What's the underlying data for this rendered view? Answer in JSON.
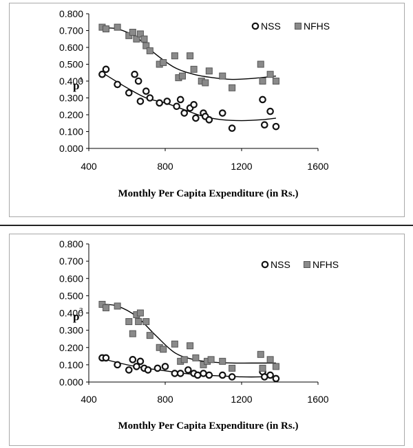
{
  "chart_data": [
    {
      "type": "scatter",
      "ylabel": "p",
      "ylabel_superscript": "1",
      "xlabel": "Monthly Per Capita Expenditure (in Rs.)",
      "xticks": [
        400,
        800,
        1200,
        1600
      ],
      "yticks": [
        "0.000",
        "0.100",
        "0.200",
        "0.300",
        "0.400",
        "0.500",
        "0.600",
        "0.700",
        "0.800"
      ],
      "xlim": [
        400,
        1600
      ],
      "ylim": [
        0,
        0.8
      ],
      "legend_position": "top-right",
      "series": [
        {
          "name": "NSS",
          "marker": "circle",
          "points": [
            [
              470,
              0.44
            ],
            [
              490,
              0.47
            ],
            [
              550,
              0.38
            ],
            [
              610,
              0.33
            ],
            [
              640,
              0.44
            ],
            [
              660,
              0.4
            ],
            [
              670,
              0.28
            ],
            [
              700,
              0.34
            ],
            [
              720,
              0.3
            ],
            [
              770,
              0.27
            ],
            [
              810,
              0.28
            ],
            [
              860,
              0.25
            ],
            [
              880,
              0.29
            ],
            [
              900,
              0.21
            ],
            [
              930,
              0.24
            ],
            [
              950,
              0.26
            ],
            [
              960,
              0.18
            ],
            [
              1000,
              0.21
            ],
            [
              1010,
              0.19
            ],
            [
              1030,
              0.17
            ],
            [
              1100,
              0.21
            ],
            [
              1150,
              0.12
            ],
            [
              1310,
              0.29
            ],
            [
              1320,
              0.14
            ],
            [
              1350,
              0.22
            ],
            [
              1380,
              0.13
            ]
          ],
          "trend": [
            [
              470,
              0.45
            ],
            [
              600,
              0.36
            ],
            [
              700,
              0.3
            ],
            [
              800,
              0.27
            ],
            [
              900,
              0.23
            ],
            [
              1000,
              0.19
            ],
            [
              1100,
              0.17
            ],
            [
              1200,
              0.165
            ],
            [
              1300,
              0.17
            ],
            [
              1380,
              0.18
            ]
          ]
        },
        {
          "name": "NFHS",
          "marker": "square",
          "points": [
            [
              470,
              0.72
            ],
            [
              490,
              0.71
            ],
            [
              550,
              0.72
            ],
            [
              610,
              0.67
            ],
            [
              630,
              0.69
            ],
            [
              650,
              0.65
            ],
            [
              670,
              0.68
            ],
            [
              690,
              0.65
            ],
            [
              700,
              0.61
            ],
            [
              720,
              0.58
            ],
            [
              770,
              0.5
            ],
            [
              790,
              0.51
            ],
            [
              850,
              0.55
            ],
            [
              870,
              0.42
            ],
            [
              890,
              0.43
            ],
            [
              930,
              0.55
            ],
            [
              950,
              0.47
            ],
            [
              990,
              0.4
            ],
            [
              1010,
              0.39
            ],
            [
              1030,
              0.46
            ],
            [
              1100,
              0.43
            ],
            [
              1150,
              0.36
            ],
            [
              1300,
              0.5
            ],
            [
              1310,
              0.4
            ],
            [
              1350,
              0.44
            ],
            [
              1380,
              0.4
            ]
          ],
          "trend": [
            [
              470,
              0.715
            ],
            [
              550,
              0.71
            ],
            [
              650,
              0.66
            ],
            [
              750,
              0.56
            ],
            [
              850,
              0.48
            ],
            [
              950,
              0.44
            ],
            [
              1050,
              0.42
            ],
            [
              1150,
              0.41
            ],
            [
              1250,
              0.415
            ],
            [
              1380,
              0.43
            ]
          ]
        }
      ]
    },
    {
      "type": "scatter",
      "ylabel": "p",
      "ylabel_superscript": "3",
      "xlabel": "Monthly Per Capita Expenditure (in Rs.)",
      "xticks": [
        400,
        800,
        1200,
        1600
      ],
      "yticks": [
        "0.000",
        "0.100",
        "0.200",
        "0.300",
        "0.400",
        "0.500",
        "0.600",
        "0.700",
        "0.800"
      ],
      "xlim": [
        400,
        1600
      ],
      "ylim": [
        0,
        0.8
      ],
      "legend_position": "top-right",
      "series": [
        {
          "name": "NSS",
          "marker": "circle",
          "points": [
            [
              470,
              0.14
            ],
            [
              490,
              0.14
            ],
            [
              550,
              0.1
            ],
            [
              610,
              0.07
            ],
            [
              630,
              0.13
            ],
            [
              650,
              0.09
            ],
            [
              670,
              0.12
            ],
            [
              690,
              0.08
            ],
            [
              710,
              0.07
            ],
            [
              760,
              0.08
            ],
            [
              800,
              0.09
            ],
            [
              850,
              0.05
            ],
            [
              880,
              0.05
            ],
            [
              920,
              0.07
            ],
            [
              950,
              0.05
            ],
            [
              970,
              0.04
            ],
            [
              1000,
              0.05
            ],
            [
              1030,
              0.04
            ],
            [
              1100,
              0.04
            ],
            [
              1150,
              0.03
            ],
            [
              1310,
              0.06
            ],
            [
              1320,
              0.03
            ],
            [
              1350,
              0.04
            ],
            [
              1380,
              0.02
            ]
          ],
          "trend": [
            [
              470,
              0.135
            ],
            [
              600,
              0.1
            ],
            [
              700,
              0.08
            ],
            [
              800,
              0.065
            ],
            [
              900,
              0.05
            ],
            [
              1000,
              0.04
            ],
            [
              1100,
              0.035
            ],
            [
              1200,
              0.03
            ],
            [
              1300,
              0.03
            ],
            [
              1380,
              0.035
            ]
          ]
        },
        {
          "name": "NFHS",
          "marker": "square",
          "points": [
            [
              470,
              0.45
            ],
            [
              490,
              0.43
            ],
            [
              550,
              0.44
            ],
            [
              610,
              0.35
            ],
            [
              630,
              0.28
            ],
            [
              650,
              0.39
            ],
            [
              660,
              0.35
            ],
            [
              670,
              0.4
            ],
            [
              700,
              0.35
            ],
            [
              720,
              0.27
            ],
            [
              770,
              0.2
            ],
            [
              790,
              0.19
            ],
            [
              850,
              0.22
            ],
            [
              880,
              0.12
            ],
            [
              900,
              0.13
            ],
            [
              930,
              0.21
            ],
            [
              960,
              0.14
            ],
            [
              1000,
              0.1
            ],
            [
              1020,
              0.12
            ],
            [
              1040,
              0.13
            ],
            [
              1100,
              0.12
            ],
            [
              1150,
              0.08
            ],
            [
              1300,
              0.16
            ],
            [
              1310,
              0.08
            ],
            [
              1350,
              0.13
            ],
            [
              1380,
              0.09
            ]
          ],
          "trend": [
            [
              470,
              0.45
            ],
            [
              550,
              0.44
            ],
            [
              650,
              0.38
            ],
            [
              750,
              0.27
            ],
            [
              850,
              0.17
            ],
            [
              950,
              0.13
            ],
            [
              1050,
              0.115
            ],
            [
              1150,
              0.11
            ],
            [
              1250,
              0.11
            ],
            [
              1380,
              0.11
            ]
          ]
        }
      ]
    }
  ]
}
